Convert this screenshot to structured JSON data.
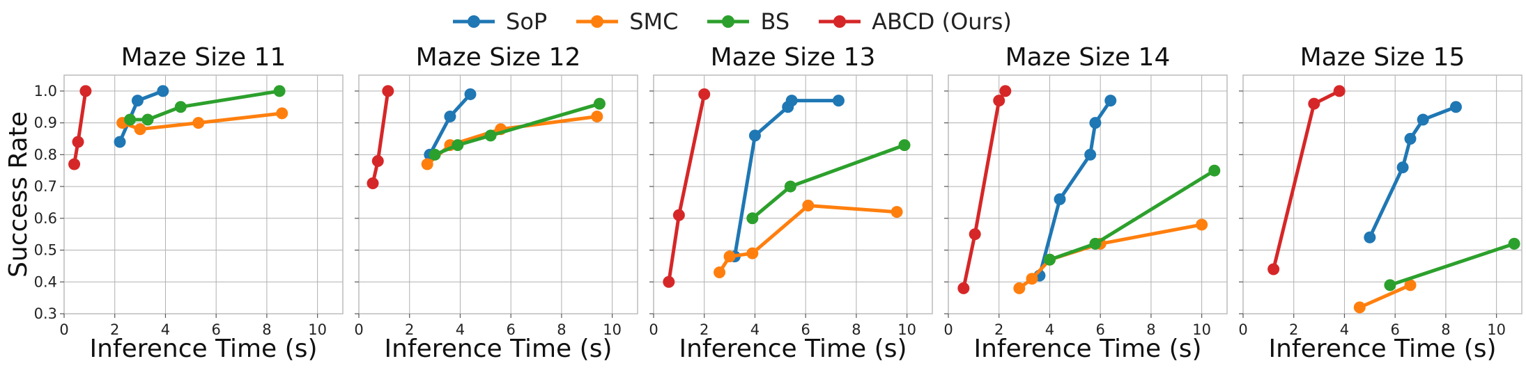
{
  "chart_data": {
    "type": "line",
    "legend": {
      "placement": "top-center",
      "entries": [
        {
          "name": "SoP",
          "color": "#1f77b4"
        },
        {
          "name": "SMC",
          "color": "#ff7f0e"
        },
        {
          "name": "BS",
          "color": "#2ca02c"
        },
        {
          "name": "ABCD (Ours)",
          "color": "#d62728"
        }
      ]
    },
    "ylabel": "Success Rate",
    "xlabel": "Inference Time (s)",
    "ylim": [
      0.3,
      1.05
    ],
    "yticks": [
      "0.3",
      "0.4",
      "0.5",
      "0.6",
      "0.7",
      "0.8",
      "0.9",
      "1.0"
    ],
    "grid": true,
    "panels": [
      {
        "title": "Maze Size 11",
        "xlim": [
          0,
          11
        ],
        "xticks": [
          "0",
          "2",
          "4",
          "6",
          "8",
          "10"
        ],
        "series": [
          {
            "name": "SoP",
            "x": [
              2.2,
              2.9,
              3.9
            ],
            "y": [
              0.84,
              0.97,
              1.0
            ]
          },
          {
            "name": "SMC",
            "x": [
              2.3,
              3.0,
              5.3,
              8.6
            ],
            "y": [
              0.9,
              0.88,
              0.9,
              0.93
            ]
          },
          {
            "name": "BS",
            "x": [
              2.6,
              3.3,
              4.6,
              8.5
            ],
            "y": [
              0.91,
              0.91,
              0.95,
              1.0
            ]
          },
          {
            "name": "ABCD (Ours)",
            "x": [
              0.4,
              0.55,
              0.85
            ],
            "y": [
              0.77,
              0.84,
              1.0
            ]
          }
        ]
      },
      {
        "title": "Maze Size 12",
        "xlim": [
          0,
          11
        ],
        "xticks": [
          "0",
          "2",
          "4",
          "6",
          "8",
          "10"
        ],
        "series": [
          {
            "name": "SoP",
            "x": [
              2.8,
              3.6,
              4.4
            ],
            "y": [
              0.8,
              0.92,
              0.99
            ]
          },
          {
            "name": "SMC",
            "x": [
              2.7,
              3.6,
              5.6,
              9.4
            ],
            "y": [
              0.77,
              0.83,
              0.88,
              0.92
            ]
          },
          {
            "name": "BS",
            "x": [
              3.0,
              3.9,
              5.2,
              9.5
            ],
            "y": [
              0.8,
              0.83,
              0.86,
              0.96
            ]
          },
          {
            "name": "ABCD (Ours)",
            "x": [
              0.55,
              0.75,
              1.15
            ],
            "y": [
              0.71,
              0.78,
              1.0
            ]
          }
        ]
      },
      {
        "title": "Maze Size 13",
        "xlim": [
          0,
          11
        ],
        "xticks": [
          "0",
          "2",
          "4",
          "6",
          "8",
          "10"
        ],
        "series": [
          {
            "name": "SoP",
            "x": [
              3.2,
              4.0,
              5.3,
              5.45,
              7.3
            ],
            "y": [
              0.48,
              0.86,
              0.95,
              0.97,
              0.97
            ]
          },
          {
            "name": "SMC",
            "x": [
              2.6,
              3.0,
              3.9,
              6.1,
              9.6
            ],
            "y": [
              0.43,
              0.48,
              0.49,
              0.64,
              0.62
            ]
          },
          {
            "name": "BS",
            "x": [
              3.9,
              5.4,
              9.9
            ],
            "y": [
              0.6,
              0.7,
              0.83
            ]
          },
          {
            "name": "ABCD (Ours)",
            "x": [
              0.6,
              1.0,
              2.0
            ],
            "y": [
              0.4,
              0.61,
              0.99
            ]
          }
        ]
      },
      {
        "title": "Maze Size 14",
        "xlim": [
          0,
          11
        ],
        "xticks": [
          "0",
          "2",
          "4",
          "6",
          "8",
          "10"
        ],
        "series": [
          {
            "name": "SoP",
            "x": [
              3.6,
              4.4,
              5.6,
              5.8,
              6.4
            ],
            "y": [
              0.42,
              0.66,
              0.8,
              0.9,
              0.97
            ]
          },
          {
            "name": "SMC",
            "x": [
              2.8,
              3.3,
              4.0,
              6.0,
              10.0
            ],
            "y": [
              0.38,
              0.41,
              0.47,
              0.52,
              0.58
            ]
          },
          {
            "name": "BS",
            "x": [
              4.0,
              5.8,
              10.5
            ],
            "y": [
              0.47,
              0.52,
              0.75
            ]
          },
          {
            "name": "ABCD (Ours)",
            "x": [
              0.6,
              1.05,
              2.0,
              2.25
            ],
            "y": [
              0.38,
              0.55,
              0.97,
              1.0
            ]
          }
        ]
      },
      {
        "title": "Maze Size 15",
        "xlim": [
          0,
          11
        ],
        "xticks": [
          "0",
          "2",
          "4",
          "6",
          "8",
          "10"
        ],
        "series": [
          {
            "name": "SoP",
            "x": [
              5.0,
              6.3,
              6.6,
              7.1,
              8.4
            ],
            "y": [
              0.54,
              0.76,
              0.85,
              0.91,
              0.95
            ]
          },
          {
            "name": "SMC",
            "x": [
              4.6,
              6.6
            ],
            "y": [
              0.32,
              0.39
            ]
          },
          {
            "name": "BS",
            "x": [
              5.8,
              10.7
            ],
            "y": [
              0.39,
              0.52
            ]
          },
          {
            "name": "ABCD (Ours)",
            "x": [
              1.2,
              2.8,
              3.8
            ],
            "y": [
              0.44,
              0.96,
              1.0
            ]
          }
        ]
      }
    ]
  }
}
